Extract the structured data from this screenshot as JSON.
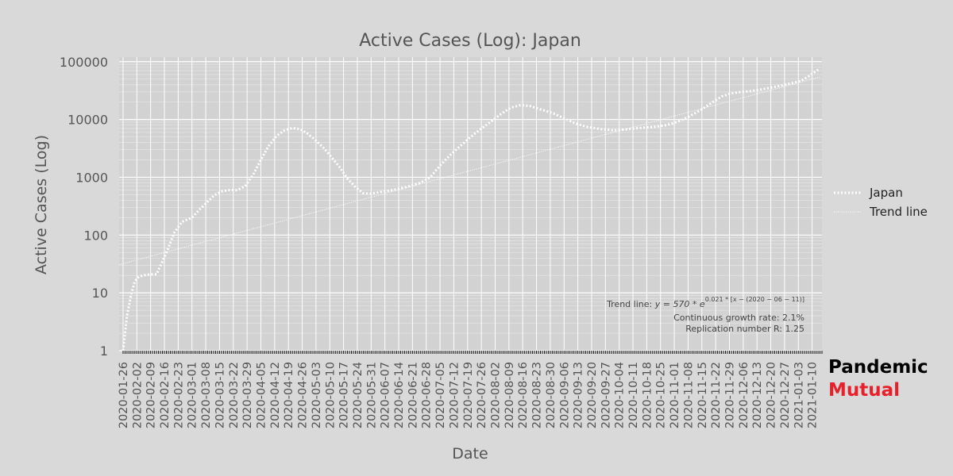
{
  "chart_data": {
    "type": "line",
    "title": "Active Cases (Log): Japan",
    "xlabel": "Date",
    "ylabel": "Active Cases (Log)",
    "yscale": "log",
    "ylim": [
      1,
      120000
    ],
    "xlim": [
      "2020-01-24",
      "2021-01-15"
    ],
    "yticks": [
      1,
      10,
      100,
      1000,
      10000,
      100000
    ],
    "ytick_labels": [
      "1",
      "10",
      "100",
      "1000",
      "10000",
      "100000"
    ],
    "xtick_labels": [
      "2020-01-26",
      "2020-02-02",
      "2020-02-09",
      "2020-02-16",
      "2020-02-23",
      "2020-03-01",
      "2020-03-08",
      "2020-03-15",
      "2020-03-22",
      "2020-03-29",
      "2020-04-05",
      "2020-04-12",
      "2020-04-19",
      "2020-04-26",
      "2020-05-03",
      "2020-05-10",
      "2020-05-17",
      "2020-05-24",
      "2020-05-31",
      "2020-06-07",
      "2020-06-14",
      "2020-06-21",
      "2020-06-28",
      "2020-07-05",
      "2020-07-12",
      "2020-07-19",
      "2020-07-26",
      "2020-08-02",
      "2020-08-09",
      "2020-08-16",
      "2020-08-23",
      "2020-08-30",
      "2020-09-06",
      "2020-09-13",
      "2020-09-20",
      "2020-09-27",
      "2020-10-04",
      "2020-10-11",
      "2020-10-18",
      "2020-10-25",
      "2020-11-01",
      "2020-11-08",
      "2020-11-15",
      "2020-11-22",
      "2020-11-29",
      "2020-12-06",
      "2020-12-13",
      "2020-12-20",
      "2020-12-27",
      "2021-01-03",
      "2021-01-10"
    ],
    "grid": true,
    "legend_position": "right",
    "series": [
      {
        "name": "Japan",
        "style": "dotted-thick",
        "color": "#ffffff",
        "points": [
          [
            "2020-01-26",
            1
          ],
          [
            "2020-01-28",
            4
          ],
          [
            "2020-01-30",
            9
          ],
          [
            "2020-02-01",
            16
          ],
          [
            "2020-02-03",
            19
          ],
          [
            "2020-02-05",
            20
          ],
          [
            "2020-02-09",
            21
          ],
          [
            "2020-02-12",
            21
          ],
          [
            "2020-02-15",
            35
          ],
          [
            "2020-02-18",
            60
          ],
          [
            "2020-02-21",
            110
          ],
          [
            "2020-02-25",
            170
          ],
          [
            "2020-03-01",
            200
          ],
          [
            "2020-03-05",
            280
          ],
          [
            "2020-03-08",
            350
          ],
          [
            "2020-03-12",
            480
          ],
          [
            "2020-03-16",
            570
          ],
          [
            "2020-03-20",
            600
          ],
          [
            "2020-03-24",
            600
          ],
          [
            "2020-03-28",
            700
          ],
          [
            "2020-04-01",
            1100
          ],
          [
            "2020-04-05",
            2000
          ],
          [
            "2020-04-09",
            3500
          ],
          [
            "2020-04-13",
            5200
          ],
          [
            "2020-04-17",
            6500
          ],
          [
            "2020-04-21",
            7100
          ],
          [
            "2020-04-25",
            6800
          ],
          [
            "2020-04-29",
            5600
          ],
          [
            "2020-05-03",
            4300
          ],
          [
            "2020-05-07",
            3200
          ],
          [
            "2020-05-11",
            2200
          ],
          [
            "2020-05-15",
            1500
          ],
          [
            "2020-05-19",
            950
          ],
          [
            "2020-05-23",
            680
          ],
          [
            "2020-05-27",
            530
          ],
          [
            "2020-05-31",
            520
          ],
          [
            "2020-06-05",
            560
          ],
          [
            "2020-06-11",
            600
          ],
          [
            "2020-06-18",
            680
          ],
          [
            "2020-06-25",
            800
          ],
          [
            "2020-06-30",
            1000
          ],
          [
            "2020-07-05",
            1600
          ],
          [
            "2020-07-10",
            2400
          ],
          [
            "2020-07-15",
            3400
          ],
          [
            "2020-07-20",
            4800
          ],
          [
            "2020-07-25",
            6600
          ],
          [
            "2020-07-30",
            8800
          ],
          [
            "2020-08-05",
            12500
          ],
          [
            "2020-08-10",
            16000
          ],
          [
            "2020-08-15",
            17800
          ],
          [
            "2020-08-20",
            17000
          ],
          [
            "2020-08-25",
            15000
          ],
          [
            "2020-08-31",
            13000
          ],
          [
            "2020-09-06",
            10500
          ],
          [
            "2020-09-12",
            8500
          ],
          [
            "2020-09-18",
            7400
          ],
          [
            "2020-09-25",
            6800
          ],
          [
            "2020-10-01",
            6500
          ],
          [
            "2020-10-07",
            6700
          ],
          [
            "2020-10-14",
            7100
          ],
          [
            "2020-10-21",
            7400
          ],
          [
            "2020-10-28",
            8000
          ],
          [
            "2020-11-03",
            9200
          ],
          [
            "2020-11-09",
            11500
          ],
          [
            "2020-11-15",
            15000
          ],
          [
            "2020-11-20",
            19500
          ],
          [
            "2020-11-25",
            25000
          ],
          [
            "2020-11-30",
            28500
          ],
          [
            "2020-12-05",
            30000
          ],
          [
            "2020-12-10",
            31000
          ],
          [
            "2020-12-15",
            33000
          ],
          [
            "2020-12-20",
            35500
          ],
          [
            "2020-12-25",
            38500
          ],
          [
            "2020-12-30",
            42000
          ],
          [
            "2021-01-04",
            46000
          ],
          [
            "2021-01-08",
            55000
          ],
          [
            "2021-01-11",
            65000
          ],
          [
            "2021-01-14",
            76000
          ]
        ]
      },
      {
        "name": "Trend line",
        "style": "dotted-thin",
        "color": "#ffffff",
        "formula": {
          "a": 570,
          "k": 0.021,
          "x0": "2020-06-11"
        },
        "x_range": [
          "2020-01-24",
          "2021-01-14"
        ]
      }
    ],
    "annotations": {
      "trend_prefix": "Trend line: ",
      "trend_formula": "y = 570 * e",
      "trend_exponent": "0.021 * [x − (2020 − 06 − 11)]",
      "growth_rate": "Continuous growth rate: 2.1%",
      "replication": "Replication number R: 1.25"
    }
  },
  "brand": {
    "line1": "Pandemic",
    "line2": "Mutual",
    "line2_color": "#e8202a"
  }
}
